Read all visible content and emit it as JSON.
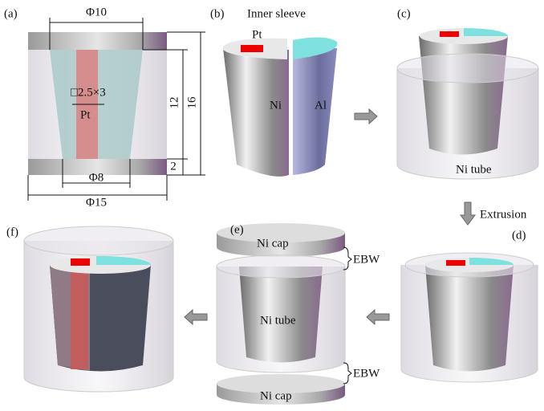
{
  "panel_a": {
    "label": "(a)",
    "top_diameter": "Φ10",
    "inner_height": "12",
    "total_height": "16",
    "strip_size": "□2.5×3",
    "strip_label": "Pt",
    "cap_height": "2",
    "bottom_diameter": "Φ8",
    "outer_diameter": "Φ15"
  },
  "panel_b": {
    "label": "(b)",
    "title": "Inner sleeve",
    "pt_label": "Pt",
    "ni_label": "Ni",
    "al_label": "Al"
  },
  "panel_c": {
    "label": "(c)",
    "tube_label": "Ni tube"
  },
  "step_label": "Extrusion",
  "panel_d": {
    "label": "(d)"
  },
  "panel_e": {
    "label": "(e)",
    "top_cap": "Ni cap",
    "top_weld": "EBW",
    "tube_label": "Ni tube",
    "bottom_weld": "EBW",
    "bottom_cap": "Ni cap"
  },
  "panel_f": {
    "label": "(f)"
  }
}
